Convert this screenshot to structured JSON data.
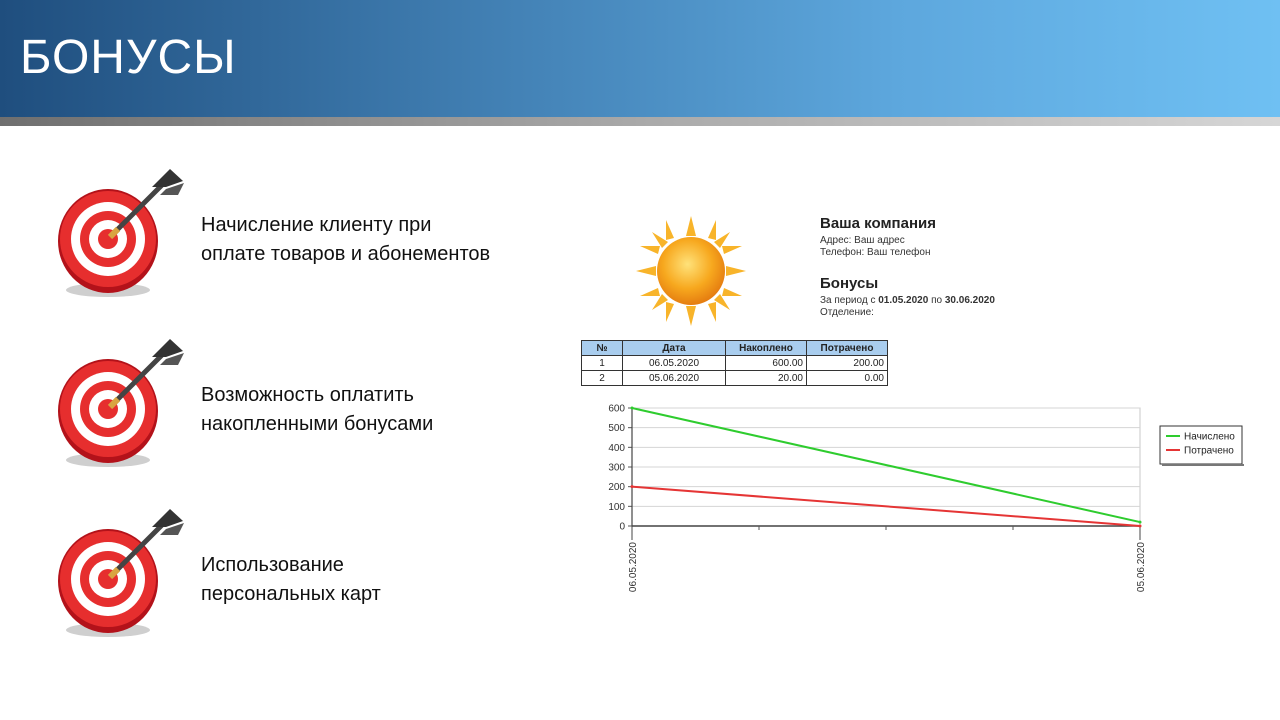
{
  "slide": {
    "title": "БОНУСЫ"
  },
  "features": [
    {
      "line1": "Начисление клиенту при",
      "line2": "оплате товаров и абонементов"
    },
    {
      "line1": "Возможность оплатить",
      "line2": "накопленными бонусами"
    },
    {
      "line1": "Использование",
      "line2": "персональных карт"
    }
  ],
  "report": {
    "company": "Ваша компания",
    "address": "Адрес: Ваш адрес",
    "phone": "Телефон: Ваш телефон",
    "title": "Бонусы",
    "period_prefix": "За период с",
    "period_from": "01.05.2020",
    "period_mid": "по",
    "period_to": "30.06.2020",
    "department": "Отделение:",
    "table": {
      "headers": [
        "№",
        "Дата",
        "Накоплено",
        "Потрачено"
      ],
      "rows": [
        [
          "1",
          "06.05.2020",
          "600.00",
          "200.00"
        ],
        [
          "2",
          "05.06.2020",
          "20.00",
          "0.00"
        ]
      ]
    }
  },
  "chart_data": {
    "type": "line",
    "x": [
      "06.05.2020",
      "05.06.2020"
    ],
    "series": [
      {
        "name": "Начислено",
        "color": "#2ecc2e",
        "values": [
          600,
          20
        ]
      },
      {
        "name": "Потрачено",
        "color": "#e53535",
        "values": [
          200,
          0
        ]
      }
    ],
    "ylim": [
      0,
      600
    ],
    "yticks": [
      0,
      100,
      200,
      300,
      400,
      500,
      600
    ],
    "grid": true,
    "legend": "right"
  }
}
